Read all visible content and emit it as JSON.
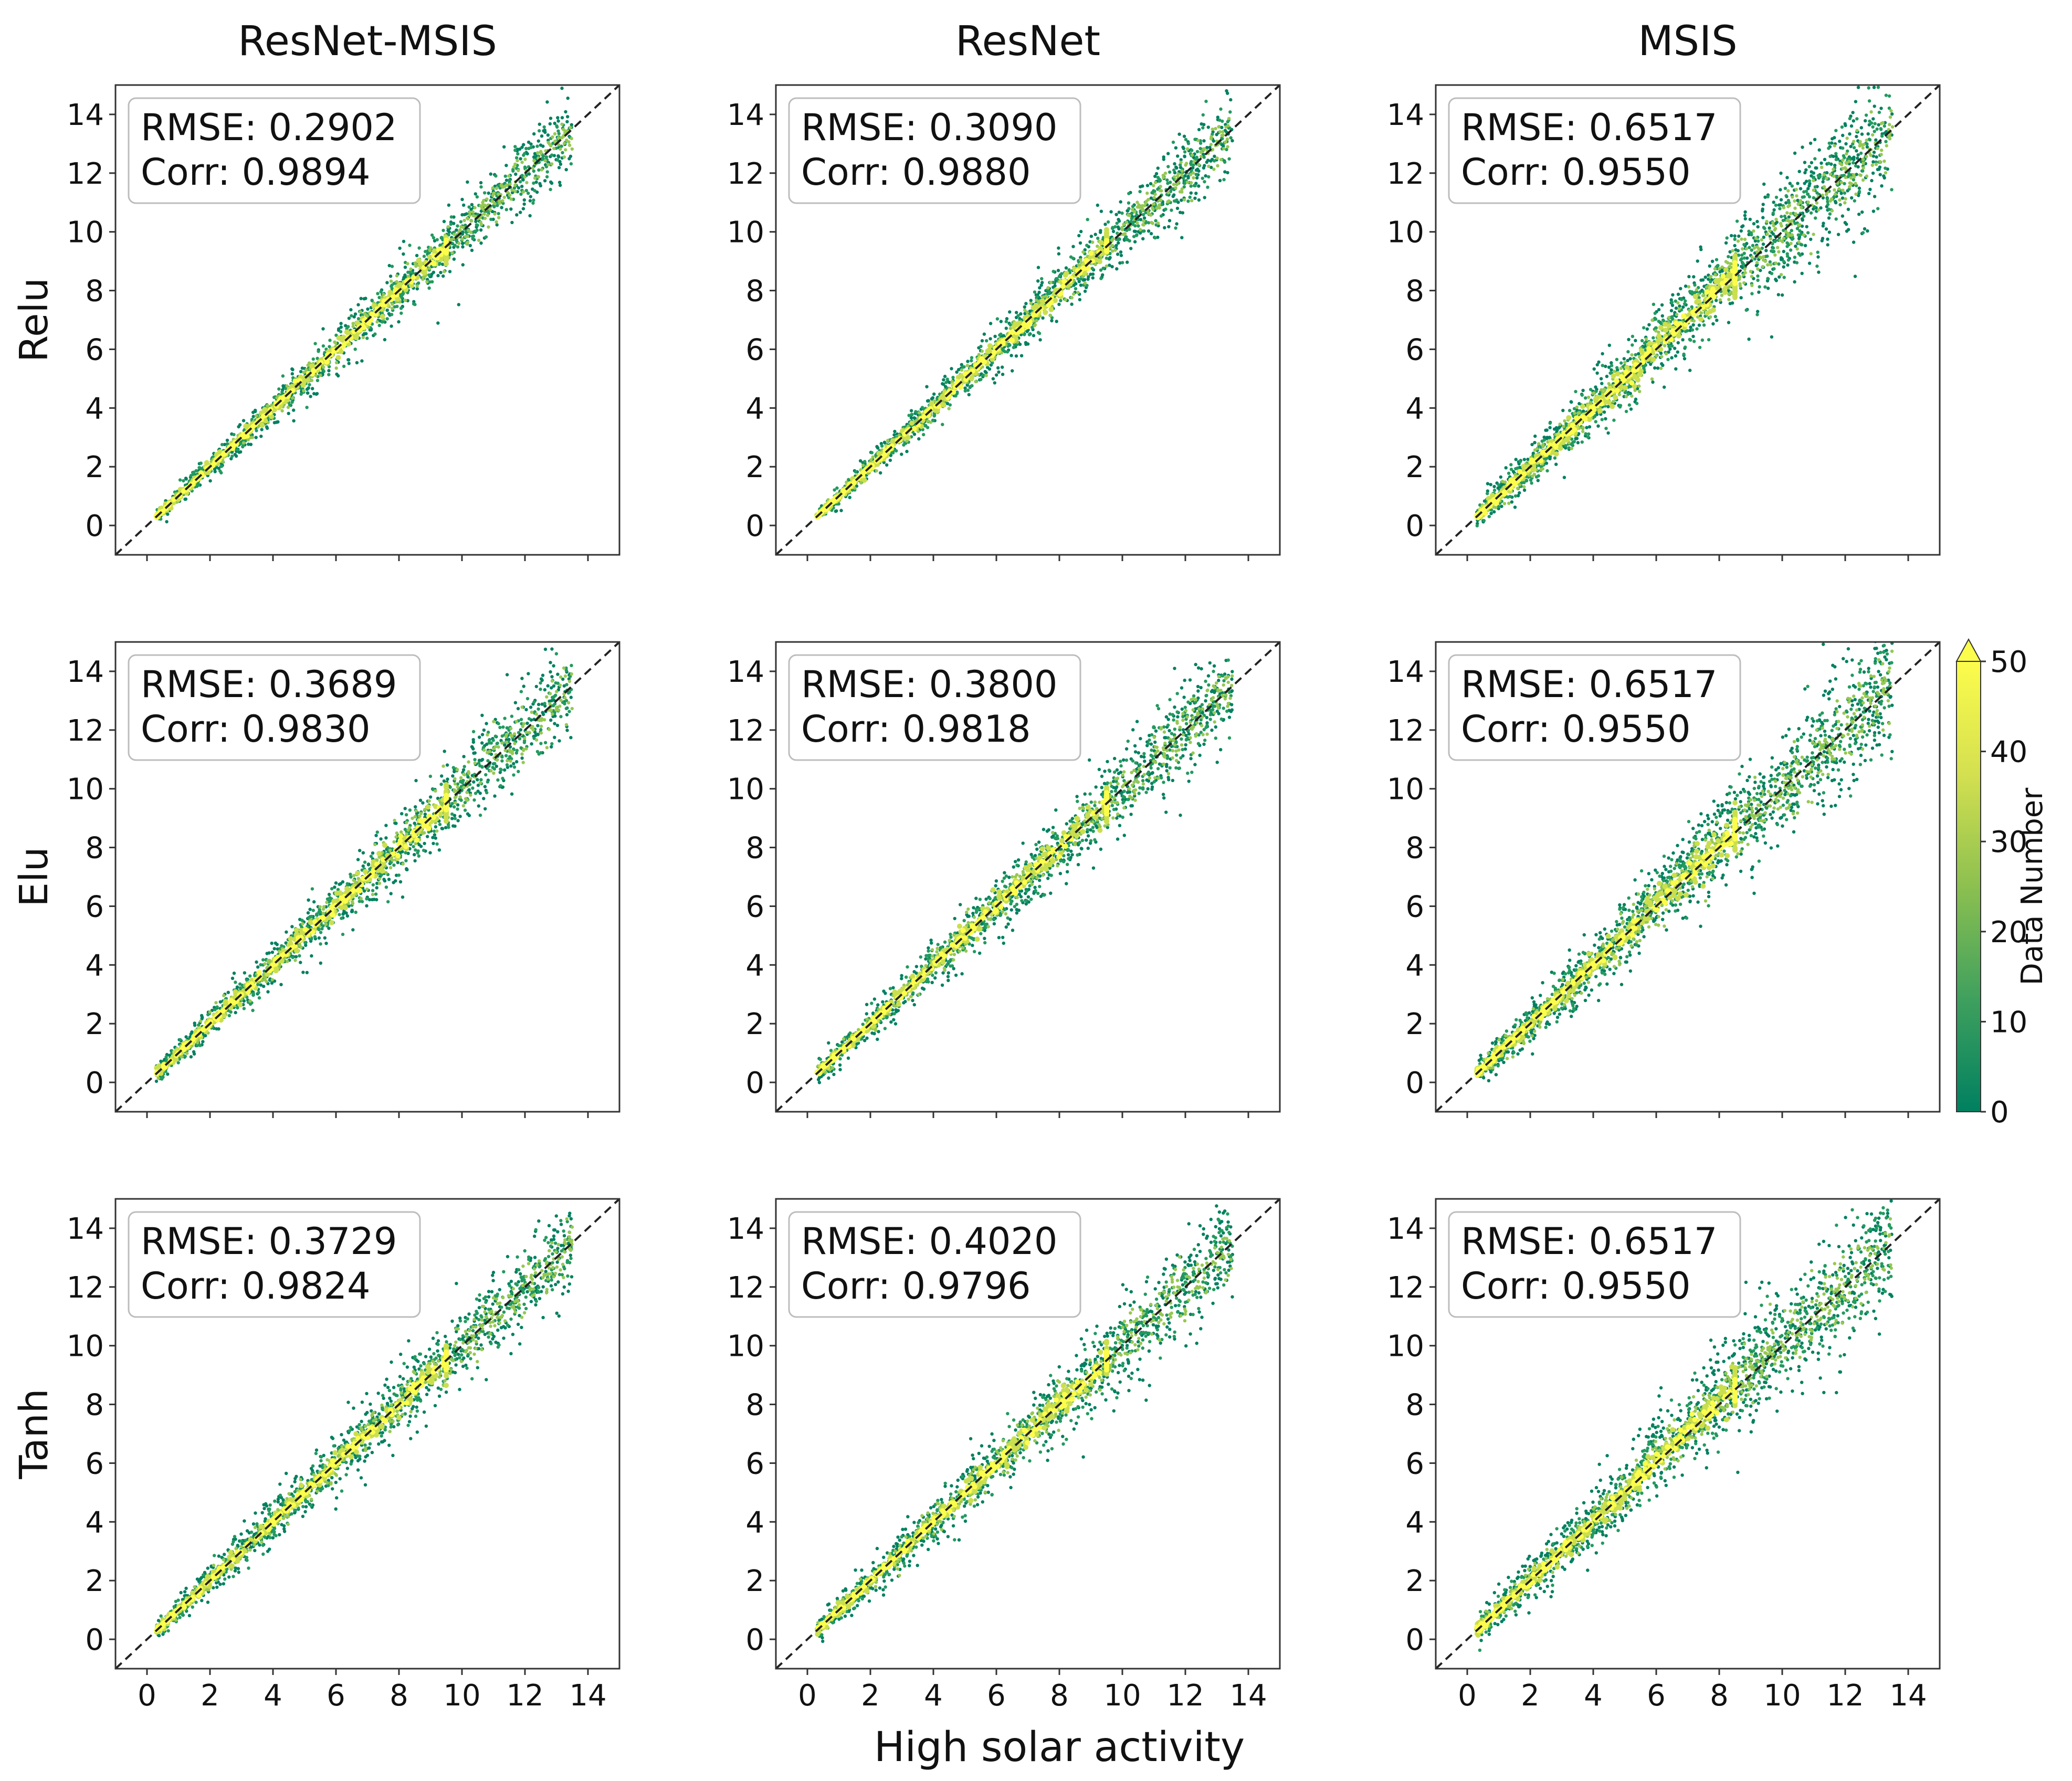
{
  "chart_data": {
    "type": "scatter",
    "subtype": "2d-density-scatter-grid",
    "columns": [
      "ResNet-MSIS",
      "ResNet",
      "MSIS"
    ],
    "rows": [
      "Relu",
      "Elu",
      "Tanh"
    ],
    "xlabel": "High solar activity",
    "ylabel": "",
    "xlim": [
      -1,
      15
    ],
    "ylim": [
      -1,
      15
    ],
    "xticks": [
      0,
      2,
      4,
      6,
      8,
      10,
      12,
      14
    ],
    "yticks": [
      0,
      2,
      4,
      6,
      8,
      10,
      12,
      14
    ],
    "reference_line": {
      "type": "y=x",
      "style": "dashed",
      "color": "#222222"
    },
    "colorbar": {
      "label": "Data Number",
      "min": 0,
      "max": 50,
      "ticks": [
        0,
        10,
        20,
        30,
        40,
        50
      ],
      "extend": "max",
      "colors": [
        "#008060",
        "#3fa05e",
        "#8cc050",
        "#d4e050",
        "#fcfc4c"
      ]
    },
    "panels": [
      {
        "row": "Relu",
        "column": "ResNet-MSIS",
        "rmse_label": "RMSE: 0.2902",
        "corr_label": "Corr: 0.9894",
        "rmse": 0.2902,
        "corr": 0.9894
      },
      {
        "row": "Relu",
        "column": "ResNet",
        "rmse_label": "RMSE: 0.3090",
        "corr_label": "Corr: 0.9880",
        "rmse": 0.309,
        "corr": 0.988
      },
      {
        "row": "Relu",
        "column": "MSIS",
        "rmse_label": "RMSE: 0.6517",
        "corr_label": "Corr: 0.9550",
        "rmse": 0.6517,
        "corr": 0.955
      },
      {
        "row": "Elu",
        "column": "ResNet-MSIS",
        "rmse_label": "RMSE: 0.3689",
        "corr_label": "Corr: 0.9830",
        "rmse": 0.3689,
        "corr": 0.983
      },
      {
        "row": "Elu",
        "column": "ResNet",
        "rmse_label": "RMSE: 0.3800",
        "corr_label": "Corr: 0.9818",
        "rmse": 0.38,
        "corr": 0.9818
      },
      {
        "row": "Elu",
        "column": "MSIS",
        "rmse_label": "RMSE: 0.6517",
        "corr_label": "Corr: 0.9550",
        "rmse": 0.6517,
        "corr": 0.955
      },
      {
        "row": "Tanh",
        "column": "ResNet-MSIS",
        "rmse_label": "RMSE: 0.3729",
        "corr_label": "Corr: 0.9824",
        "rmse": 0.3729,
        "corr": 0.9824
      },
      {
        "row": "Tanh",
        "column": "ResNet",
        "rmse_label": "RMSE: 0.4020",
        "corr_label": "Corr: 0.9796",
        "rmse": 0.402,
        "corr": 0.9796
      },
      {
        "row": "Tanh",
        "column": "MSIS",
        "rmse_label": "RMSE: 0.6517",
        "corr_label": "Corr: 0.9550",
        "rmse": 0.6517,
        "corr": 0.955
      }
    ]
  }
}
